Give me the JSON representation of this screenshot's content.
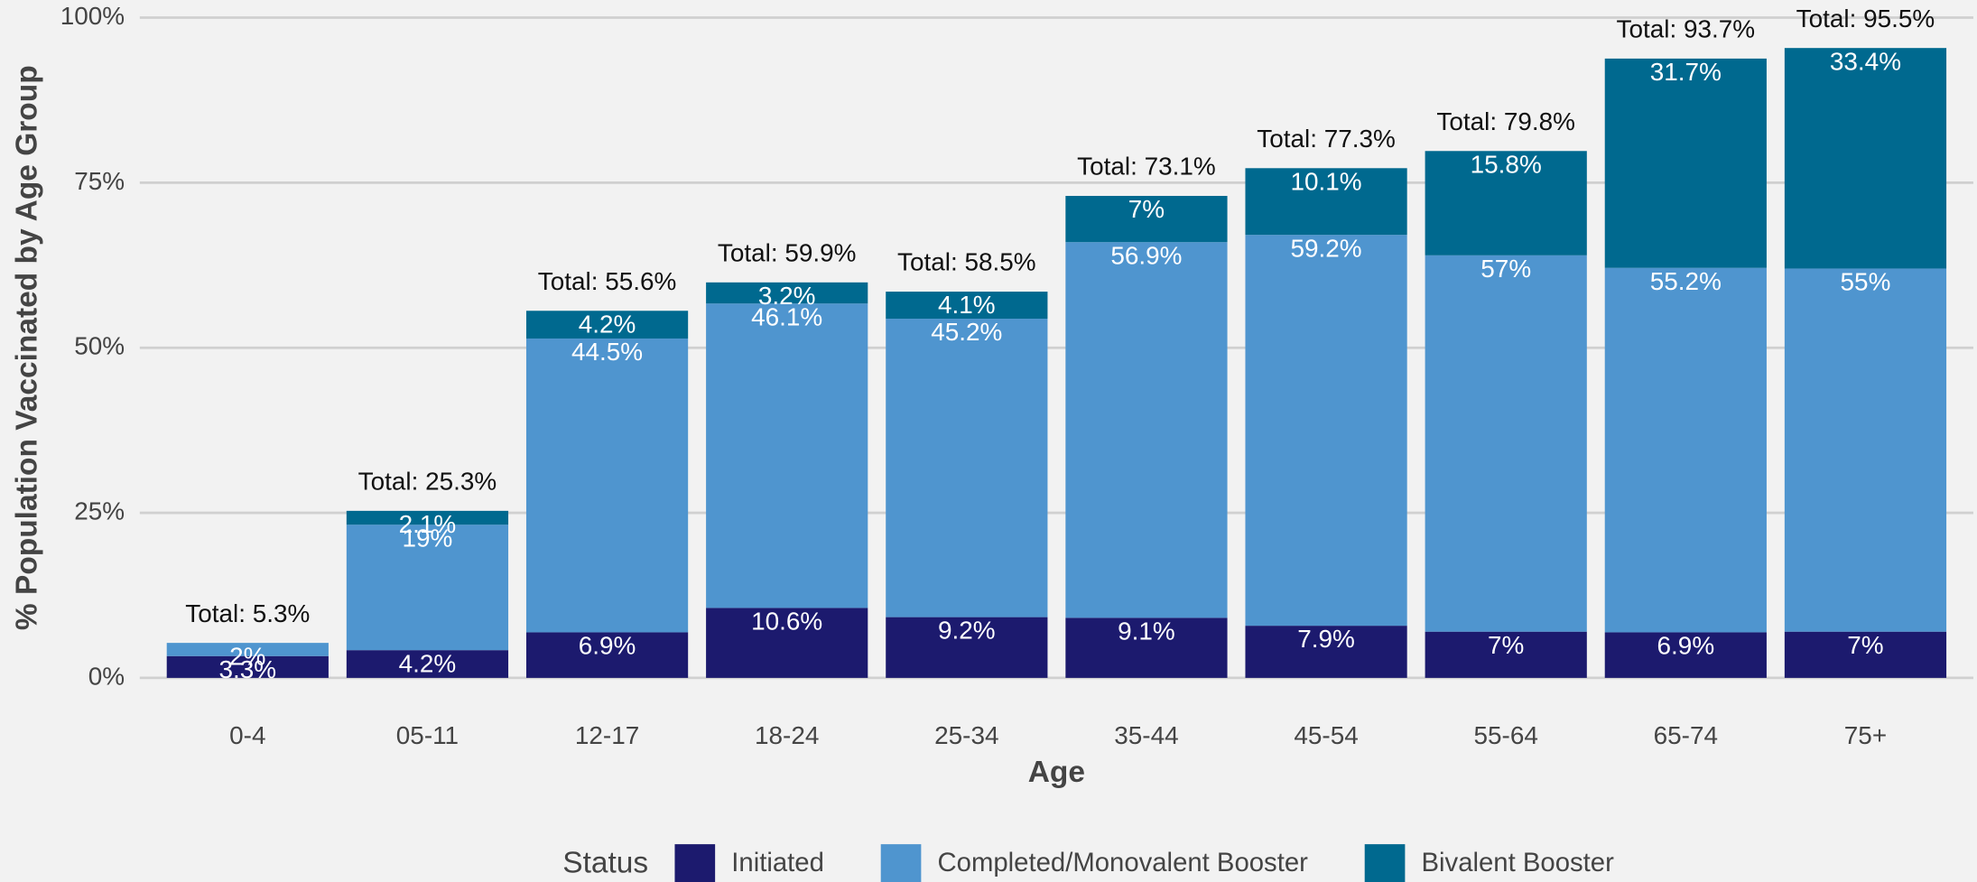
{
  "chart_data": {
    "type": "bar",
    "stacked": true,
    "categories": [
      "0-4",
      "05-11",
      "12-17",
      "18-24",
      "25-34",
      "35-44",
      "45-54",
      "55-64",
      "65-74",
      "75+"
    ],
    "series": [
      {
        "name": "Initiated",
        "color": "#1c1a6e",
        "values": [
          3.3,
          4.2,
          6.9,
          10.6,
          9.2,
          9.1,
          7.9,
          7,
          6.9,
          7
        ],
        "value_labels": [
          "3.3%",
          "4.2%",
          "6.9%",
          "10.6%",
          "9.2%",
          "9.1%",
          "7.9%",
          "7%",
          "6.9%",
          "7%"
        ]
      },
      {
        "name": "Completed/Monovalent Booster",
        "color": "#4f95cf",
        "values": [
          2,
          19,
          44.5,
          46.1,
          45.2,
          56.9,
          59.2,
          57,
          55.2,
          55
        ],
        "value_labels": [
          "2%",
          "19%",
          "44.5%",
          "46.1%",
          "45.2%",
          "56.9%",
          "59.2%",
          "57%",
          "55.2%",
          "55%"
        ]
      },
      {
        "name": "Bivalent Booster",
        "color": "#00698f",
        "values": [
          null,
          2.1,
          4.2,
          3.2,
          4.1,
          7,
          10.1,
          15.8,
          31.7,
          33.4
        ],
        "value_labels": [
          null,
          "2.1%",
          "4.2%",
          "3.2%",
          "4.1%",
          "7%",
          "10.1%",
          "15.8%",
          "31.7%",
          "33.4%"
        ]
      }
    ],
    "annotations": [
      "Total: 5.3%",
      "Total: 25.3%",
      "Total: 55.6%",
      "Total: 59.9%",
      "Total: 58.5%",
      "Total: 73.1%",
      "Total: 77.3%",
      "Total: 79.8%",
      "Total: 93.7%",
      "Total: 95.5%"
    ],
    "xlabel": "Age",
    "ylabel": "% Population Vaccinated by Age Group",
    "legend_title": "Status",
    "legend": "bottom",
    "ylim": [
      0,
      100
    ],
    "yticks": [
      {
        "value": 0,
        "label": "0%"
      },
      {
        "value": 25,
        "label": "25%"
      },
      {
        "value": 50,
        "label": "50%"
      },
      {
        "value": 75,
        "label": "75%"
      },
      {
        "value": 100,
        "label": "100%"
      }
    ],
    "grid": true
  }
}
